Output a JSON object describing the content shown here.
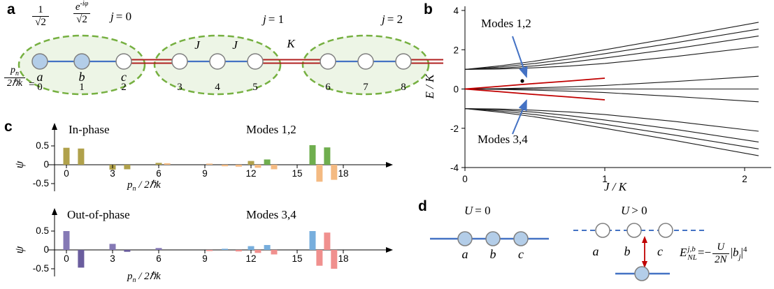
{
  "panels": {
    "a": {
      "label": "a",
      "frac_amp1": {
        "num": "1",
        "den": "√2"
      },
      "frac_amp2": {
        "num_base": "e",
        "num_sup": "-iφ",
        "den": "√2"
      },
      "j_labels": [
        {
          "v": "j",
          "r": "= 0"
        },
        {
          "v": "j",
          "r": "= 1"
        },
        {
          "v": "j",
          "r": "= 2"
        }
      ],
      "couplings": {
        "J1": "J",
        "J2": "J",
        "K": "K"
      },
      "site_labels": [
        "a",
        "b",
        "c"
      ],
      "momentum_frac": {
        "num_base": "p",
        "num_sub": "n",
        "den": "2ℏk"
      },
      "equals": "=",
      "site_indices": [
        "0",
        "1",
        "2",
        "3",
        "4",
        "5",
        "6",
        "7",
        "8"
      ],
      "colors": {
        "site_fill": "#b3cde8",
        "bond": "#4472c4",
        "inter_bond": "#b02020",
        "ellipse_stroke": "#76b041",
        "ellipse_fill": "#eaf3e2"
      }
    },
    "b": {
      "label": "b"
    },
    "c": {
      "label": "c"
    },
    "d": {
      "label": "d",
      "u0": {
        "v": "U",
        "r": "= 0"
      },
      "u1": {
        "v": "U",
        "r": "> 0"
      },
      "left_site_labels": [
        "a",
        "b",
        "c"
      ],
      "right_site_labels": [
        "a",
        "b",
        "c"
      ],
      "equation": {
        "base": "E",
        "sup": "j,b",
        "sub": "NL",
        "rel": "=",
        "minus": "−",
        "num": "U",
        "den": "2N",
        "bar1": "|",
        "b": "b",
        "bsub": "j",
        "bar2": "|",
        "pow": "4"
      }
    }
  },
  "bar_colors": {
    "olive": "#b0a14b",
    "orange": "#f4ba82",
    "green": "#6fae4e",
    "purple": "#8579b5",
    "purple2": "#6a5d9e",
    "pink": "#f0908e",
    "blue": "#77aedd"
  },
  "chart_data": [
    {
      "id": "energy-spectrum",
      "type": "line",
      "xlabel": "J / K",
      "ylabel": "E / K",
      "xlim": [
        0,
        2.15
      ],
      "ylim": [
        -4,
        4
      ],
      "xticks": [
        0,
        1,
        2
      ],
      "yticks": [
        -4,
        -2,
        0,
        2,
        4
      ],
      "annotations": [
        "Modes 1,2",
        "Modes 3,4"
      ],
      "x": [
        0,
        0.25,
        0.5,
        0.75,
        1,
        1.5,
        2.1
      ],
      "series": [
        {
          "name": "band-upper-1",
          "color": "#1a1a1a",
          "values": [
            1,
            1.18,
            1.42,
            1.7,
            2,
            2.62,
            3.4
          ]
        },
        {
          "name": "band-upper-2",
          "color": "#1a1a1a",
          "values": [
            1,
            1.12,
            1.3,
            1.53,
            1.8,
            2.35,
            3.05
          ]
        },
        {
          "name": "band-upper-3",
          "color": "#1a1a1a",
          "values": [
            1,
            1.06,
            1.18,
            1.36,
            1.58,
            2.05,
            2.7
          ]
        },
        {
          "name": "band-upper-4",
          "color": "#1a1a1a",
          "values": [
            1,
            1.02,
            1.08,
            1.17,
            1.3,
            1.65,
            2.15
          ]
        },
        {
          "name": "band-middle-up",
          "color": "#1a1a1a",
          "values": [
            0,
            0.02,
            0.06,
            0.11,
            0.18,
            0.38,
            0.65
          ]
        },
        {
          "name": "band-middle-flat",
          "color": "#1a1a1a",
          "values": [
            0,
            0,
            0,
            0,
            0,
            0,
            0
          ]
        },
        {
          "name": "band-middle-down",
          "color": "#1a1a1a",
          "values": [
            0,
            -0.02,
            -0.06,
            -0.11,
            -0.18,
            -0.38,
            -0.65
          ]
        },
        {
          "name": "band-lower-4",
          "color": "#1a1a1a",
          "values": [
            -1,
            -1.02,
            -1.08,
            -1.17,
            -1.3,
            -1.65,
            -2.15
          ]
        },
        {
          "name": "band-lower-3",
          "color": "#1a1a1a",
          "values": [
            -1,
            -1.06,
            -1.18,
            -1.36,
            -1.58,
            -2.05,
            -2.7
          ]
        },
        {
          "name": "band-lower-2",
          "color": "#1a1a1a",
          "values": [
            -1,
            -1.12,
            -1.3,
            -1.53,
            -1.8,
            -2.35,
            -3.05
          ]
        },
        {
          "name": "band-lower-1",
          "color": "#1a1a1a",
          "values": [
            -1,
            -1.18,
            -1.42,
            -1.7,
            -2,
            -2.62,
            -3.4
          ]
        },
        {
          "name": "modes-1-2",
          "color": "#c00000",
          "values": [
            0,
            0.14,
            0.28,
            0.41,
            0.55,
            null,
            null
          ]
        },
        {
          "name": "modes-3-4",
          "color": "#c00000",
          "values": [
            0,
            -0.14,
            -0.28,
            -0.41,
            -0.55,
            null,
            null
          ]
        }
      ]
    },
    {
      "id": "in-phase-modes",
      "type": "bar",
      "title": "In-phase",
      "legend": "Modes 1,2",
      "ylabel": "ψ",
      "xlabel": "pₙ / 2ℏk",
      "xlabel_base": "p",
      "xlabel_sub": "n",
      "xlabel_rest": " / 2ℏk",
      "ylim": [
        -0.6,
        0.6
      ],
      "yticks": [
        0.5,
        0,
        -0.5
      ],
      "xticks": [
        0,
        3,
        6,
        9,
        12,
        15,
        18
      ],
      "bars": [
        {
          "x": 0,
          "v": 0.45,
          "c": "olive"
        },
        {
          "x": 0.95,
          "v": 0.43,
          "c": "olive"
        },
        {
          "x": 3,
          "v": -0.13,
          "c": "olive"
        },
        {
          "x": 3.95,
          "v": -0.12,
          "c": "olive"
        },
        {
          "x": 6,
          "v": 0.05,
          "c": "olive"
        },
        {
          "x": 6.55,
          "v": 0.04,
          "c": "orange"
        },
        {
          "x": 9.3,
          "v": 0.03,
          "c": "orange"
        },
        {
          "x": 10.3,
          "v": -0.04,
          "c": "orange"
        },
        {
          "x": 11.2,
          "v": -0.05,
          "c": "orange"
        },
        {
          "x": 12,
          "v": 0.1,
          "c": "olive"
        },
        {
          "x": 12.45,
          "v": -0.08,
          "c": "orange"
        },
        {
          "x": 13.05,
          "v": 0.14,
          "c": "green"
        },
        {
          "x": 13.5,
          "v": -0.12,
          "c": "orange"
        },
        {
          "x": 16,
          "v": 0.52,
          "c": "green"
        },
        {
          "x": 16.45,
          "v": -0.45,
          "c": "orange"
        },
        {
          "x": 16.95,
          "v": 0.46,
          "c": "green"
        },
        {
          "x": 17.4,
          "v": -0.4,
          "c": "orange"
        }
      ]
    },
    {
      "id": "out-of-phase-modes",
      "type": "bar",
      "title": "Out-of-phase",
      "legend": "Modes 3,4",
      "ylabel": "ψ",
      "xlabel": "pₙ / 2ℏk",
      "xlabel_base": "p",
      "xlabel_sub": "n",
      "xlabel_rest": " / 2ℏk",
      "ylim": [
        -0.6,
        0.6
      ],
      "yticks": [
        0.5,
        0,
        -0.5
      ],
      "xticks": [
        0,
        3,
        6,
        9,
        12,
        15,
        18
      ],
      "bars": [
        {
          "x": 0,
          "v": 0.5,
          "c": "purple"
        },
        {
          "x": 0.95,
          "v": -0.47,
          "c": "purple2"
        },
        {
          "x": 3,
          "v": 0.16,
          "c": "purple"
        },
        {
          "x": 3.95,
          "v": -0.05,
          "c": "purple2"
        },
        {
          "x": 6,
          "v": 0.05,
          "c": "purple"
        },
        {
          "x": 9.3,
          "v": -0.03,
          "c": "pink"
        },
        {
          "x": 10.3,
          "v": 0.03,
          "c": "blue"
        },
        {
          "x": 11.2,
          "v": -0.04,
          "c": "pink"
        },
        {
          "x": 12,
          "v": 0.1,
          "c": "blue"
        },
        {
          "x": 12.45,
          "v": -0.08,
          "c": "pink"
        },
        {
          "x": 13.05,
          "v": 0.13,
          "c": "blue"
        },
        {
          "x": 13.5,
          "v": -0.12,
          "c": "pink"
        },
        {
          "x": 16,
          "v": 0.5,
          "c": "blue"
        },
        {
          "x": 16.45,
          "v": -0.42,
          "c": "pink"
        },
        {
          "x": 16.95,
          "v": 0.46,
          "c": "pink"
        },
        {
          "x": 17.4,
          "v": -0.5,
          "c": "pink"
        }
      ]
    }
  ]
}
